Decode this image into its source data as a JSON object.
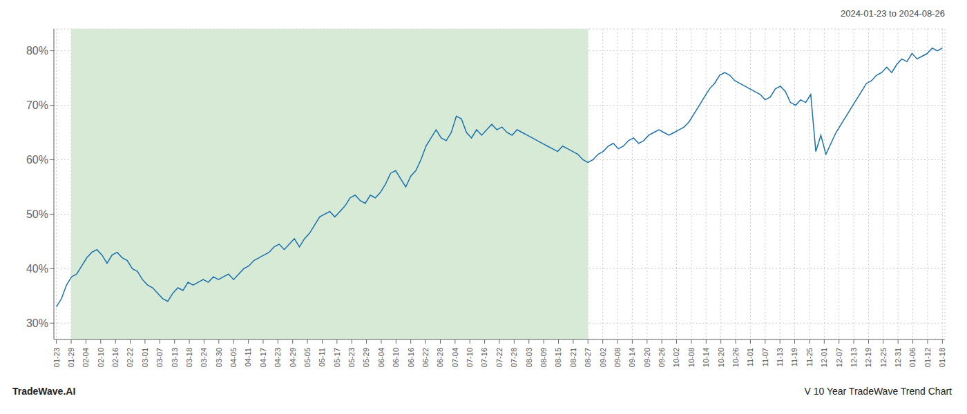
{
  "chart_data": {
    "type": "line",
    "title": "2024-01-23 to 2024-08-26",
    "annotations": [
      "TradeWave.AI",
      "V 10 Year TradeWave Trend Chart"
    ],
    "color": "#1a6faf",
    "grid": true,
    "xlim": [
      -0.5,
      175.5
    ],
    "xticks": [
      {
        "value": 0,
        "label": "01-23"
      },
      {
        "value": 2.9166666667,
        "label": "01-29"
      },
      {
        "value": 5.8333333333,
        "label": "02-04"
      },
      {
        "value": 8.75,
        "label": "02-10"
      },
      {
        "value": 11.6666666667,
        "label": "02-16"
      },
      {
        "value": 14.5833333333,
        "label": "02-22"
      },
      {
        "value": 17.5,
        "label": "03-01"
      },
      {
        "value": 20.4166666667,
        "label": "03-07"
      },
      {
        "value": 23.3333333333,
        "label": "03-13"
      },
      {
        "value": 26.25,
        "label": "03-18"
      },
      {
        "value": 29.1666666667,
        "label": "03-24"
      },
      {
        "value": 32.0833333333,
        "label": "03-30"
      },
      {
        "value": 35,
        "label": "04-05"
      },
      {
        "value": 37.9166666667,
        "label": "04-11"
      },
      {
        "value": 40.8333333333,
        "label": "04-17"
      },
      {
        "value": 43.75,
        "label": "04-23"
      },
      {
        "value": 46.6666666667,
        "label": "04-29"
      },
      {
        "value": 49.5833333333,
        "label": "05-05"
      },
      {
        "value": 52.5,
        "label": "05-11"
      },
      {
        "value": 55.4166666667,
        "label": "05-17"
      },
      {
        "value": 58.3333333333,
        "label": "05-23"
      },
      {
        "value": 61.25,
        "label": "05-29"
      },
      {
        "value": 64.1666666667,
        "label": "06-04"
      },
      {
        "value": 67.0833333333,
        "label": "06-10"
      },
      {
        "value": 70,
        "label": "06-16"
      },
      {
        "value": 72.9166666667,
        "label": "06-22"
      },
      {
        "value": 75.8333333333,
        "label": "06-28"
      },
      {
        "value": 78.75,
        "label": "07-04"
      },
      {
        "value": 81.6666666667,
        "label": "07-10"
      },
      {
        "value": 84.5833333333,
        "label": "07-16"
      },
      {
        "value": 87.5,
        "label": "07-22"
      },
      {
        "value": 90.4166666667,
        "label": "07-28"
      },
      {
        "value": 93.3333333333,
        "label": "08-03"
      },
      {
        "value": 96.25,
        "label": "08-09"
      },
      {
        "value": 99.1666666667,
        "label": "08-15"
      },
      {
        "value": 102.0833333333,
        "label": "08-21"
      },
      {
        "value": 105,
        "label": "08-27"
      },
      {
        "value": 107.9166666667,
        "label": "09-02"
      },
      {
        "value": 110.8333333333,
        "label": "09-08"
      },
      {
        "value": 113.75,
        "label": "09-14"
      },
      {
        "value": 116.6666666667,
        "label": "09-20"
      },
      {
        "value": 119.5833333333,
        "label": "09-26"
      },
      {
        "value": 122.5,
        "label": "10-02"
      },
      {
        "value": 125.4166666667,
        "label": "10-08"
      },
      {
        "value": 128.3333333333,
        "label": "10-14"
      },
      {
        "value": 131.25,
        "label": "10-20"
      },
      {
        "value": 134.1666666667,
        "label": "10-26"
      },
      {
        "value": 137.0833333333,
        "label": "11-01"
      },
      {
        "value": 140,
        "label": "11-07"
      },
      {
        "value": 142.9166666667,
        "label": "11-13"
      },
      {
        "value": 145.8333333333,
        "label": "11-19"
      },
      {
        "value": 148.75,
        "label": "11-25"
      },
      {
        "value": 151.6666666667,
        "label": "12-01"
      },
      {
        "value": 154.5833333333,
        "label": "12-07"
      },
      {
        "value": 157.5,
        "label": "12-13"
      },
      {
        "value": 160.4166666667,
        "label": "12-19"
      },
      {
        "value": 163.3333333333,
        "label": "12-25"
      },
      {
        "value": 166.25,
        "label": "12-31"
      },
      {
        "value": 169.1666666667,
        "label": "01-06"
      },
      {
        "value": 172.0833333333,
        "label": "01-12"
      },
      {
        "value": 175,
        "label": "01-18"
      }
    ],
    "ylim": [
      27,
      84
    ],
    "yticks": [
      {
        "value": 30,
        "label": "30%"
      },
      {
        "value": 40,
        "label": "40%"
      },
      {
        "value": 50,
        "label": "50%"
      },
      {
        "value": 60,
        "label": "60%"
      },
      {
        "value": 70,
        "label": "70%"
      },
      {
        "value": 80,
        "label": "80%"
      }
    ],
    "shading": {
      "from": "01-29",
      "to": "08-27",
      "color": "#d6ead6"
    },
    "x": [
      0,
      1,
      2,
      3,
      4,
      5,
      6,
      7,
      8,
      9,
      10,
      11,
      12,
      13,
      14,
      15,
      16,
      17,
      18,
      19,
      20,
      21,
      22,
      23,
      24,
      25,
      26,
      27,
      28,
      29,
      30,
      31,
      32,
      33,
      34,
      35,
      36,
      37,
      38,
      39,
      40,
      41,
      42,
      43,
      44,
      45,
      46,
      47,
      48,
      49,
      50,
      51,
      52,
      53,
      54,
      55,
      56,
      57,
      58,
      59,
      60,
      61,
      62,
      63,
      64,
      65,
      66,
      67,
      68,
      69,
      70,
      71,
      72,
      73,
      74,
      75,
      76,
      77,
      78,
      79,
      80,
      81,
      82,
      83,
      84,
      85,
      86,
      87,
      88,
      89,
      90,
      91,
      92,
      93,
      94,
      95,
      96,
      97,
      98,
      99,
      100,
      101,
      102,
      103,
      104,
      105,
      106,
      107,
      108,
      109,
      110,
      111,
      112,
      113,
      114,
      115,
      116,
      117,
      118,
      119,
      120,
      121,
      122,
      123,
      124,
      125,
      126,
      127,
      128,
      129,
      130,
      131,
      132,
      133,
      134,
      135,
      136,
      137,
      138,
      139,
      140,
      141,
      142,
      143,
      144,
      145,
      146,
      147,
      148,
      149,
      150,
      151,
      152,
      153,
      154,
      155,
      156,
      157,
      158,
      159,
      160,
      161,
      162,
      163,
      164,
      165,
      166,
      167,
      168,
      169,
      170,
      171,
      172,
      173,
      174,
      175
    ],
    "values": [
      33.0,
      34.5,
      37.0,
      38.5,
      39.0,
      40.5,
      42.0,
      43.0,
      43.5,
      42.5,
      41.0,
      42.5,
      43.0,
      42.0,
      41.5,
      40.0,
      39.5,
      38.0,
      37.0,
      36.5,
      35.5,
      34.5,
      34.0,
      35.5,
      36.5,
      36.0,
      37.5,
      37.0,
      37.5,
      38.0,
      37.5,
      38.5,
      38.0,
      38.5,
      39.0,
      38.0,
      39.0,
      40.0,
      40.5,
      41.5,
      42.0,
      42.5,
      43.0,
      44.0,
      44.5,
      43.5,
      44.5,
      45.5,
      44.0,
      45.5,
      46.5,
      48.0,
      49.5,
      50.0,
      50.5,
      49.5,
      50.5,
      51.5,
      53.0,
      53.5,
      52.5,
      52.0,
      53.5,
      53.0,
      54.0,
      55.5,
      57.5,
      58.0,
      56.5,
      55.0,
      57.0,
      58.0,
      60.0,
      62.5,
      64.0,
      65.5,
      64.0,
      63.5,
      65.0,
      68.0,
      67.5,
      65.0,
      64.0,
      65.5,
      64.5,
      65.5,
      66.5,
      65.5,
      66.0,
      65.0,
      64.5,
      65.5,
      65.0,
      64.5,
      64.0,
      63.5,
      63.0,
      62.5,
      62.0,
      61.5,
      62.5,
      62.0,
      61.5,
      61.0,
      60.0,
      59.5,
      60.0,
      61.0,
      61.5,
      62.5,
      63.0,
      62.0,
      62.5,
      63.5,
      64.0,
      63.0,
      63.5,
      64.5,
      65.0,
      65.5,
      65.0,
      64.5,
      65.0,
      65.5,
      66.0,
      67.0,
      68.5,
      70.0,
      71.5,
      73.0,
      74.0,
      75.5,
      76.0,
      75.5,
      74.5,
      74.0,
      73.5,
      73.0,
      72.5,
      72.0,
      71.0,
      71.5,
      73.0,
      73.5,
      72.5,
      70.5,
      70.0,
      71.0,
      70.5,
      72.0,
      61.5,
      64.5,
      61.0,
      63.0,
      65.0,
      66.5,
      68.0,
      69.5,
      71.0,
      72.5,
      74.0,
      74.5,
      75.5,
      76.0,
      77.0,
      76.0,
      77.5,
      78.5,
      78.0,
      79.5,
      78.5,
      79.0,
      79.5,
      80.5,
      80.0,
      80.5
    ]
  }
}
